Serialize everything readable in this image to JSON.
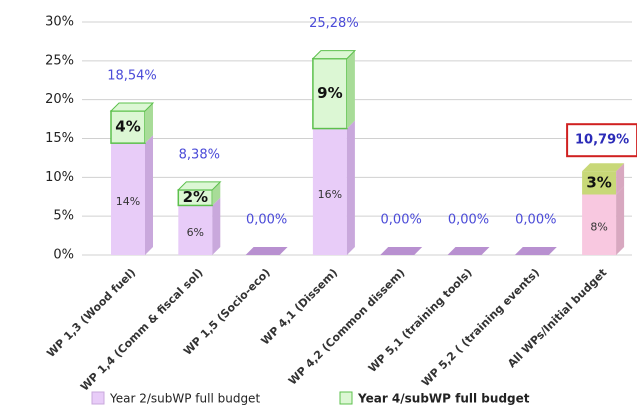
{
  "chart_data": {
    "type": "bar",
    "stacked": true,
    "categories": [
      "WP 1,3 (Wood fuel)",
      "WP 1,4 (Comm & fiscal sol)",
      "WP 1,5 (Socio-eco)",
      "WP 4,1 (Dissem)",
      "WP 4,2 (Common dissem)",
      "WP 5,1 (training tools)",
      "WP 5,2 ( (training events)",
      "All WPs/Initial budget"
    ],
    "series": [
      {
        "name": "Year 2/subWP full budget",
        "color": "#e8ccf8",
        "side_color": "#c9a8dc",
        "values": [
          14.4,
          6.38,
          0,
          16.28,
          0,
          0,
          0,
          7.79
        ],
        "value_labels": [
          "14%",
          "6%",
          null,
          "16%",
          null,
          null,
          null,
          "8%"
        ]
      },
      {
        "name": "Year 4/subWP full budget",
        "color": "#dcf7d4",
        "side_color": "#a8dc98",
        "values": [
          4.14,
          2,
          0,
          9,
          0,
          0,
          0,
          3
        ],
        "value_labels": [
          "4%",
          "2%",
          null,
          "9%",
          null,
          null,
          null,
          "3%"
        ]
      }
    ],
    "totals": [
      18.54,
      8.38,
      0,
      25.28,
      0,
      0,
      0,
      10.79
    ],
    "total_labels": [
      "18,54%",
      "8,38%",
      "0,00%",
      "25,28%",
      "0,00%",
      "0,00%",
      "0,00%",
      "10,79%"
    ],
    "highlight": {
      "index": 7,
      "colors": [
        "#f8c8e0",
        "#c8d878"
      ]
    },
    "ylim": [
      0,
      30
    ],
    "yticks": [
      {
        "value": 0,
        "label": "0%"
      },
      {
        "value": 5,
        "label": "5%"
      },
      {
        "value": 10,
        "label": "10%"
      },
      {
        "value": 15,
        "label": "15%"
      },
      {
        "value": 20,
        "label": "20%"
      },
      {
        "value": 25,
        "label": "25%"
      },
      {
        "value": 30,
        "label": "30%"
      }
    ],
    "grid": true
  }
}
